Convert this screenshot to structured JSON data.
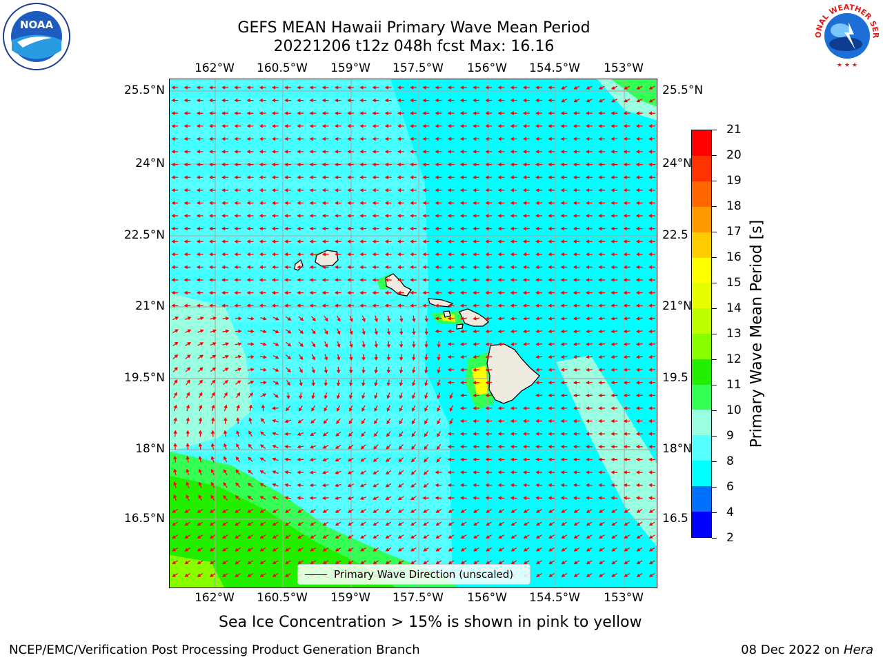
{
  "header": {
    "title_line1": "GEFS MEAN Hawaii Primary Wave Mean Period",
    "title_line2": "20221206 t12z 048h fcst   Max: 16.16"
  },
  "logos": {
    "left": "NOAA",
    "right": "NATIONAL WEATHER SERVICE"
  },
  "axes": {
    "lon_labels": [
      "162°W",
      "160.5°W",
      "159°W",
      "157.5°W",
      "156°W",
      "154.5°W",
      "153°W"
    ],
    "lat_labels": [
      "25.5°N",
      "24°N",
      "22.5°N",
      "21°N",
      "19.5°N",
      "18°N",
      "16.5°N"
    ],
    "right_lat_labels": [
      "25.5°N",
      "24°N",
      "22.5",
      "21°N",
      "19.5",
      "18°N",
      "16.5"
    ]
  },
  "colorbar": {
    "label": "Primary Wave Mean Period [s]",
    "ticks": [
      "2",
      "4",
      "6",
      "8",
      "9",
      "10",
      "11",
      "12",
      "13",
      "14",
      "15",
      "16",
      "17",
      "18",
      "19",
      "20",
      "21"
    ],
    "colors": [
      "#0000ff",
      "#0070ff",
      "#00ffff",
      "#55ffff",
      "#99ffe0",
      "#33ff55",
      "#22ee00",
      "#88ff00",
      "#bbff00",
      "#e5ff00",
      "#ffff00",
      "#ffcc00",
      "#ff9900",
      "#ff6600",
      "#ff3300",
      "#ff0000"
    ]
  },
  "legend": {
    "label": "Primary Wave Direction (unscaled)"
  },
  "notes": {
    "sea_ice": "Sea Ice Concentration > 15% is shown in pink to yellow"
  },
  "footer": {
    "left": "NCEP/EMC/Verification Post Processing Product Generation Branch",
    "right_prefix": "08 Dec 2022 on ",
    "right_host": "Hera"
  }
}
